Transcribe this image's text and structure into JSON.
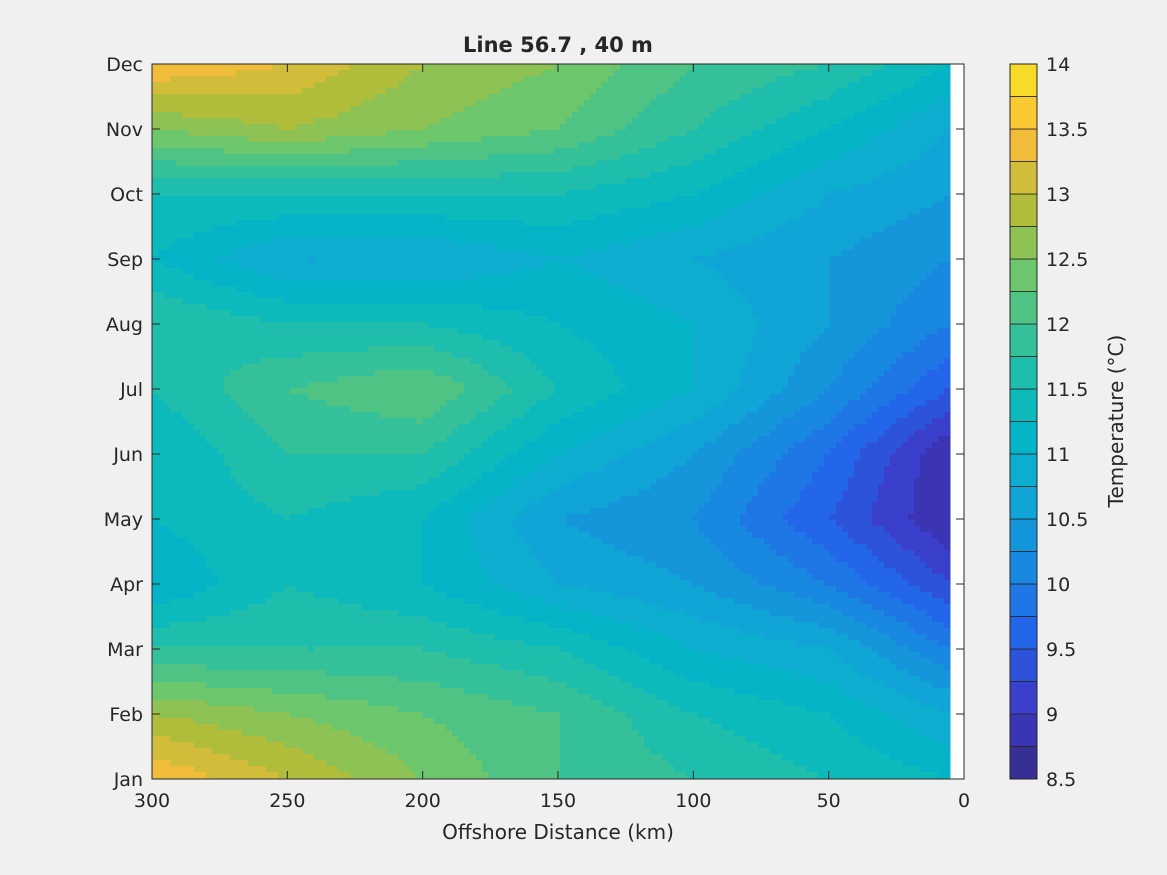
{
  "chart_data": {
    "type": "heatmap",
    "subtype": "filled-contour",
    "title": "Line 56.7 , 40 m",
    "xlabel": "Offshore Distance (km)",
    "ylabel": "",
    "xlim": [
      300,
      0
    ],
    "x_reversed": true,
    "x_ticks": [
      300,
      250,
      200,
      150,
      100,
      50,
      0
    ],
    "y_categories": [
      "Jan",
      "Feb",
      "Mar",
      "Apr",
      "May",
      "Jun",
      "Jul",
      "Aug",
      "Sep",
      "Oct",
      "Nov",
      "Dec"
    ],
    "grid": false,
    "colorbar": {
      "label": "Temperature (°C)",
      "range": [
        8.5,
        14
      ],
      "tick_values": [
        8.5,
        9,
        9.5,
        10,
        10.5,
        11,
        11.5,
        12,
        12.5,
        13,
        13.5,
        14
      ],
      "tick_labels": [
        "8.5",
        "9",
        "9.5",
        "10",
        "10.5",
        "11",
        "11.5",
        "12",
        "12.5",
        "13",
        "13.5",
        "14"
      ],
      "level_step": 0.25,
      "colormap": "parula"
    },
    "data_extent_x": [
      300,
      5
    ],
    "x": [
      300,
      250,
      200,
      150,
      100,
      50,
      5
    ],
    "y": [
      "Jan",
      "Feb",
      "Mar",
      "Apr",
      "May",
      "Jun",
      "Jul",
      "Aug",
      "Sep",
      "Oct",
      "Nov",
      "Dec"
    ],
    "values": [
      [
        13.5,
        13.0,
        12.5,
        12.0,
        11.75,
        11.5,
        11.25
      ],
      [
        12.75,
        12.5,
        12.25,
        12.0,
        11.5,
        11.25,
        10.75
      ],
      [
        11.75,
        11.75,
        11.75,
        11.5,
        11.0,
        10.75,
        10.0
      ],
      [
        11.0,
        11.5,
        11.25,
        10.75,
        10.5,
        10.0,
        9.25
      ],
      [
        11.25,
        11.5,
        11.25,
        10.5,
        10.25,
        9.5,
        8.75
      ],
      [
        11.25,
        11.75,
        11.75,
        11.0,
        10.5,
        9.75,
        8.75
      ],
      [
        11.5,
        12.0,
        12.25,
        11.5,
        11.0,
        10.25,
        9.5
      ],
      [
        11.75,
        11.5,
        11.5,
        11.25,
        11.0,
        10.5,
        10.0
      ],
      [
        11.25,
        10.75,
        10.75,
        11.0,
        10.75,
        10.5,
        10.25
      ],
      [
        11.5,
        11.5,
        11.5,
        11.5,
        11.25,
        10.75,
        10.5
      ],
      [
        12.5,
        12.75,
        12.5,
        12.25,
        11.75,
        11.25,
        10.75
      ],
      [
        13.5,
        13.25,
        12.75,
        12.5,
        12.0,
        11.75,
        11.25
      ]
    ]
  }
}
